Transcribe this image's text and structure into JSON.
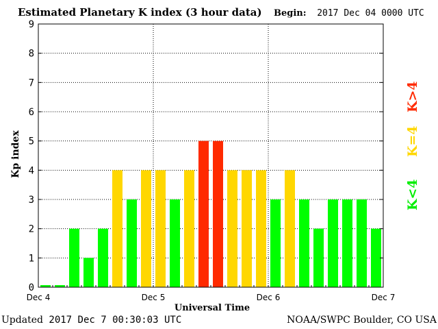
{
  "header": {
    "title": "Estimated Planetary K index (3 hour data)",
    "begin_label": "Begin:",
    "begin_value": "2017 Dec 04 0000 UTC"
  },
  "footer": {
    "updated_label": "Updated",
    "updated_value": "2017 Dec  7 00:30:03 UTC",
    "credit": "NOAA/SWPC Boulder, CO USA"
  },
  "legend": {
    "low": "K<4",
    "mid": "K=4",
    "high": "K>4"
  },
  "colors": {
    "low": "#00ff00",
    "mid": "#ffd700",
    "high": "#ff2a00"
  },
  "chart_data": {
    "type": "bar",
    "xlabel": "Universal Time",
    "ylabel": "Kp index",
    "ylim": [
      0,
      9
    ],
    "yticks": [
      "0",
      "1",
      "2",
      "3",
      "4",
      "5",
      "6",
      "7",
      "8",
      "9"
    ],
    "xticks": [
      "Dec 4",
      "Dec 5",
      "Dec 6",
      "Dec 7"
    ],
    "grid": true,
    "values": [
      0.05,
      0.05,
      2,
      1,
      2,
      4,
      3,
      4,
      4,
      3,
      4,
      5,
      5,
      4,
      4,
      4,
      3,
      4,
      3,
      2,
      3,
      3,
      3,
      2
    ]
  }
}
